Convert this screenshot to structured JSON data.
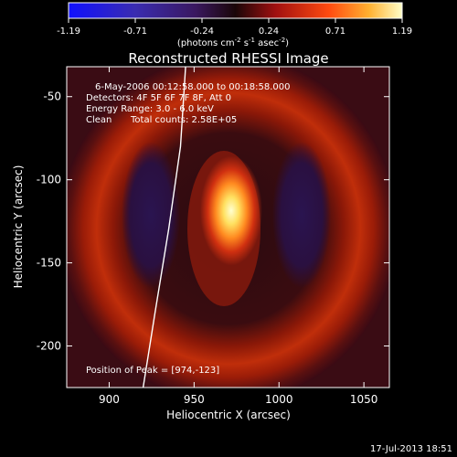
{
  "chart_data": {
    "type": "heatmap",
    "title": "Reconstructed RHESSI Image",
    "xlabel": "Heliocentric X (arcsec)",
    "ylabel": "Heliocentric Y (arcsec)",
    "xlim": [
      875,
      1065
    ],
    "ylim": [
      -225,
      -32
    ],
    "xticks": [
      900,
      950,
      1000,
      1050
    ],
    "yticks": [
      -50,
      -100,
      -150,
      -200
    ],
    "colorbar": {
      "ticks": [
        "-1.19",
        "-0.71",
        "-0.24",
        "0.24",
        "0.71",
        "1.19"
      ],
      "range": [
        -1.19,
        1.19
      ],
      "unit_label": "(photons cm",
      "unit_sup1": "-2",
      "unit_mid1": " s",
      "unit_sup2": "-1",
      "unit_mid2": " asec",
      "unit_sup3": "-2",
      "unit_end": ")"
    },
    "annotations": {
      "time": "6-May-2006 00:12:58.000 to 00:18:58.000",
      "detectors": "Detectors: 4F 5F 6F 7F 8F, Att 0",
      "energy": "Energy Range: 3.0 - 6.0 keV",
      "clean": "Clean",
      "counts": "Total counts: 2.58E+05",
      "peak": "Position of Peak = [974,-123]"
    },
    "peak": {
      "x": 974,
      "y": -123
    },
    "limb_curve": [
      [
        945,
        -32
      ],
      [
        942,
        -80
      ],
      [
        935,
        -130
      ],
      [
        927,
        -180
      ],
      [
        920,
        -225
      ]
    ]
  },
  "footer": {
    "timestamp": "17-Jul-2013 18:51"
  }
}
